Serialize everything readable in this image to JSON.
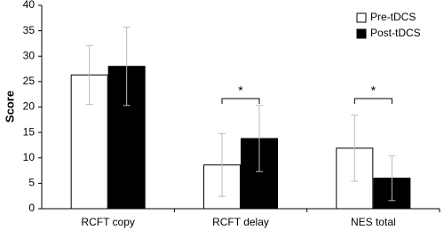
{
  "chart_data": {
    "type": "bar",
    "y_label": "Score",
    "categories": [
      "RCFT copy",
      "RCFT delay",
      "NES total"
    ],
    "series": [
      {
        "name": "Pre-tDCS",
        "color": "#ffffff",
        "values": [
          26.3,
          8.6,
          11.9
        ],
        "errors": [
          5.8,
          6.2,
          6.5
        ]
      },
      {
        "name": "Post-tDCS",
        "color": "#000000",
        "values": [
          28.0,
          13.8,
          6.0
        ],
        "errors": [
          7.7,
          6.5,
          4.4
        ]
      }
    ],
    "significance_labels": [
      null,
      "*",
      "*"
    ],
    "ylim": [
      0,
      40
    ],
    "yticks": [
      0,
      5,
      10,
      15,
      20,
      25,
      30,
      35,
      40
    ],
    "legend": "upper right",
    "error_color": "#bbbbbb"
  }
}
